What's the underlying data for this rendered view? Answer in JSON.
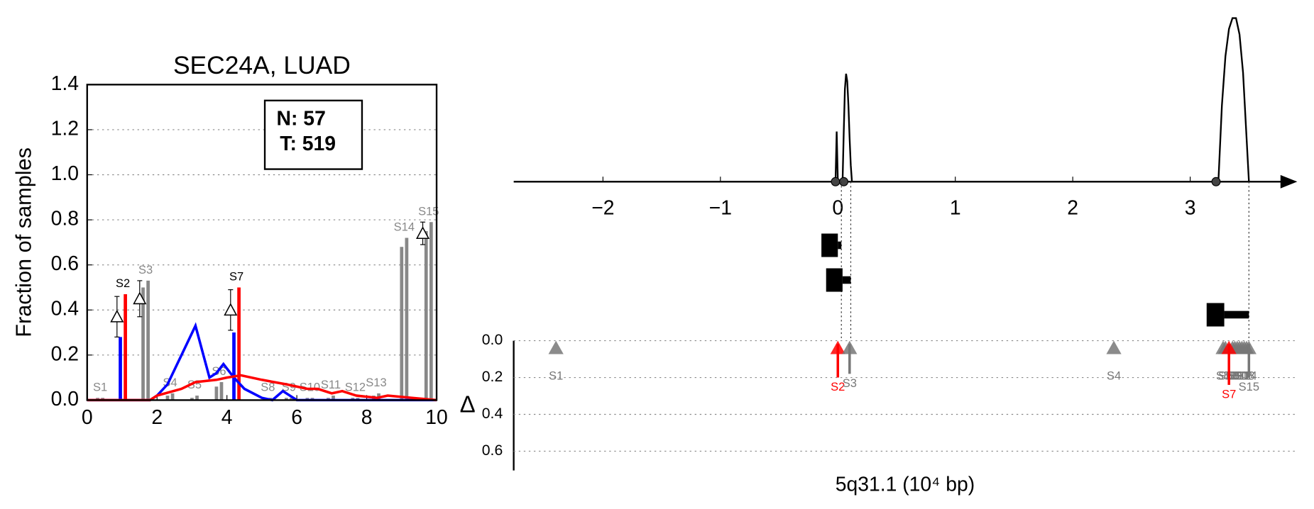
{
  "chart_data": [
    {
      "type": "line",
      "title": "SEC24A, LUAD",
      "ylabel": "Fraction of samples",
      "xlim": [
        0,
        10
      ],
      "xticks": [
        0,
        2,
        4,
        6,
        8,
        10
      ],
      "ylim": [
        0,
        1.4
      ],
      "yticks": [
        {
          "value": 0,
          "label": "0.0"
        },
        {
          "value": 0.2,
          "label": "0.2"
        },
        {
          "value": 0.4,
          "label": "0.4"
        },
        {
          "value": 0.6,
          "label": "0.6"
        },
        {
          "value": 0.8,
          "label": "0.8"
        },
        {
          "value": 1.0,
          "label": "1.0"
        },
        {
          "value": 1.2,
          "label": "1.2"
        },
        {
          "value": 1.4,
          "label": "1.4"
        }
      ],
      "grid": true,
      "legend_text": [
        "N: 57",
        "T: 519"
      ],
      "series": [
        {
          "color": "#0000ff",
          "x": [
            0,
            1.8,
            2.0,
            2.3,
            2.7,
            3.1,
            3.5,
            3.7,
            3.9,
            4.2,
            4.5,
            5.0,
            5.3,
            5.6,
            6.0,
            10
          ],
          "values": [
            0,
            0,
            0.02,
            0.07,
            0.2,
            0.33,
            0.1,
            0.12,
            0.16,
            0.1,
            0.05,
            0.01,
            0,
            0.04,
            0,
            0
          ]
        },
        {
          "color": "#ff0000",
          "x": [
            0,
            1.8,
            2.0,
            2.7,
            3.1,
            3.7,
            4.0,
            4.4,
            5.0,
            5.7,
            6.3,
            6.6,
            7.0,
            7.3,
            7.7,
            8.3,
            8.6,
            9.3,
            10
          ],
          "values": [
            0,
            0,
            0.02,
            0.05,
            0.08,
            0.09,
            0.1,
            0.11,
            0.09,
            0.07,
            0.05,
            0.05,
            0.03,
            0.04,
            0.02,
            0.01,
            0.02,
            0.01,
            0
          ]
        }
      ],
      "samples": [
        {
          "label": "S1",
          "label_color": "#888888",
          "x": 0.3,
          "values": [
            0.01,
            0.01
          ],
          "colors": [
            "#888888",
            "#888888"
          ]
        },
        {
          "label": "S2",
          "label_color": "#000000",
          "x": 0.95,
          "values": [
            0.28,
            0.47
          ],
          "colors": [
            "#0000ff",
            "#ff0000"
          ],
          "delta": 0.37,
          "delta_error": 0.09
        },
        {
          "label": "S3",
          "label_color": "#888888",
          "x": 1.6,
          "values": [
            0.5,
            0.53
          ],
          "colors": [
            "#888888",
            "#888888"
          ],
          "delta": 0.45,
          "delta_error": 0.08
        },
        {
          "label": "S4",
          "label_color": "#888888",
          "x": 2.3,
          "values": [
            0.02,
            0.03
          ],
          "colors": [
            "#888888",
            "#888888"
          ]
        },
        {
          "label": "S5",
          "label_color": "#888888",
          "x": 3.0,
          "values": [
            0.01,
            0.02
          ],
          "colors": [
            "#888888",
            "#888888"
          ]
        },
        {
          "label": "S6",
          "label_color": "#888888",
          "x": 3.7,
          "values": [
            0.06,
            0.08
          ],
          "colors": [
            "#888888",
            "#888888"
          ]
        },
        {
          "label": "S7",
          "label_color": "#000000",
          "x": 4.2,
          "values": [
            0.3,
            0.5
          ],
          "colors": [
            "#0000ff",
            "#ff0000"
          ],
          "delta": 0.4,
          "delta_error": 0.09
        },
        {
          "label": "S8",
          "label_color": "#888888",
          "x": 5.1,
          "values": [
            0.01,
            0.01
          ],
          "colors": [
            "#888888",
            "#888888"
          ]
        },
        {
          "label": "S9",
          "label_color": "#888888",
          "x": 5.7,
          "values": [
            0.01,
            0.01
          ],
          "colors": [
            "#888888",
            "#888888"
          ]
        },
        {
          "label": "S10",
          "label_color": "#888888",
          "x": 6.3,
          "values": [
            0.01,
            0.01
          ],
          "colors": [
            "#888888",
            "#888888"
          ]
        },
        {
          "label": "S11",
          "label_color": "#888888",
          "x": 6.9,
          "values": [
            0.01,
            0.02
          ],
          "colors": [
            "#888888",
            "#888888"
          ]
        },
        {
          "label": "S12",
          "label_color": "#888888",
          "x": 7.6,
          "values": [
            0.01,
            0.01
          ],
          "colors": [
            "#888888",
            "#888888"
          ]
        },
        {
          "label": "S13",
          "label_color": "#888888",
          "x": 8.2,
          "values": [
            0.02,
            0.03
          ],
          "colors": [
            "#888888",
            "#888888"
          ]
        },
        {
          "label": "S14",
          "label_color": "#888888",
          "x": 9.0,
          "values": [
            0.68,
            0.72
          ],
          "colors": [
            "#888888",
            "#888888"
          ]
        },
        {
          "label": "S15",
          "label_color": "#888888",
          "x": 9.7,
          "values": [
            0.75,
            0.79
          ],
          "colors": [
            "#888888",
            "#888888"
          ],
          "delta": 0.74,
          "delta_error": 0.05
        }
      ]
    },
    {
      "type": "locus",
      "xlabel": "5q31.1 (10⁴ bp)",
      "xlim": [
        -2.76,
        3.89
      ],
      "xticks": [
        {
          "value": -2,
          "label": "−2"
        },
        {
          "value": -1,
          "label": "−1"
        },
        0,
        1,
        2,
        3
      ],
      "density": {
        "ylim": [
          0,
          1.55
        ],
        "curves": [
          {
            "x": [
              -0.02,
              -0.01,
              0.0
            ],
            "values": [
              0,
              0.46,
              0
            ]
          },
          {
            "x": [
              0.04,
              0.05,
              0.06,
              0.07,
              0.08,
              0.09,
              0.1,
              0.11,
              0.12
            ],
            "values": [
              0,
              0.45,
              0.85,
              0.99,
              0.92,
              0.7,
              0.4,
              0.15,
              0
            ]
          },
          {
            "x": [
              3.24,
              3.27,
              3.3,
              3.33,
              3.36,
              3.39,
              3.42,
              3.45,
              3.48,
              3.5
            ],
            "values": [
              0,
              0.7,
              1.15,
              1.4,
              1.5,
              1.5,
              1.35,
              1.0,
              0.4,
              0
            ]
          }
        ],
        "points": [
          -0.02,
          0.05,
          3.22
        ]
      },
      "boxes": [
        {
          "q1": -0.14,
          "q3": 0.0,
          "max": 0.03
        },
        {
          "q1": -0.1,
          "q3": 0.04,
          "max": 0.11
        },
        {
          "q1": 3.14,
          "q3": 3.29,
          "max": 3.5
        }
      ],
      "delta": {
        "ylabel": "Δ",
        "ylim": [
          0,
          0.7
        ],
        "yticks": [
          {
            "value": 0,
            "label": "0.0"
          },
          {
            "value": 0.2,
            "label": "0.2"
          },
          {
            "value": 0.4,
            "label": "0.4"
          },
          {
            "value": 0.6,
            "label": "0.6"
          }
        ],
        "samples": [
          {
            "label": "S1",
            "x": -2.4,
            "value": 0,
            "color": "#777777"
          },
          {
            "label": "S2",
            "x": 0.0,
            "value": 0.2,
            "color": "#ff0000"
          },
          {
            "label": "S3",
            "x": 0.1,
            "value": 0.18,
            "color": "#777777"
          },
          {
            "label": "S4",
            "x": 2.35,
            "value": 0,
            "color": "#777777"
          },
          {
            "label": "S5",
            "x": 3.28,
            "value": 0,
            "color": "#777777"
          },
          {
            "label": "S6",
            "x": 3.3,
            "value": 0,
            "color": "#777777"
          },
          {
            "label": "S8",
            "x": 3.36,
            "value": 0,
            "color": "#777777"
          },
          {
            "label": "S9",
            "x": 3.38,
            "value": 0,
            "color": "#777777"
          },
          {
            "label": "S10",
            "x": 3.4,
            "value": 0,
            "color": "#777777"
          },
          {
            "label": "S11",
            "x": 3.42,
            "value": 0,
            "color": "#777777"
          },
          {
            "label": "S12",
            "x": 3.44,
            "value": 0,
            "color": "#777777"
          },
          {
            "label": "S13",
            "x": 3.46,
            "value": 0,
            "color": "#777777"
          },
          {
            "label": "S14",
            "x": 3.48,
            "value": 0,
            "color": "#777777"
          },
          {
            "label": "S15",
            "x": 3.5,
            "value": 0.2,
            "color": "#777777"
          },
          {
            "label": "S7",
            "x": 3.33,
            "value": 0.24,
            "color": "#ff0000"
          }
        ]
      }
    }
  ]
}
